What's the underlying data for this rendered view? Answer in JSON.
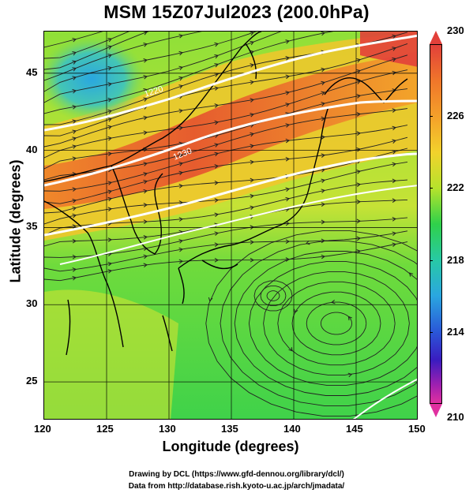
{
  "title": "MSM 15Z07Jul2023 (200.0hPa)",
  "x_axis": {
    "label": "Longitude (degrees)",
    "ticks": [
      "120",
      "125",
      "130",
      "135",
      "140",
      "145",
      "150"
    ],
    "range": [
      120,
      150
    ]
  },
  "y_axis": {
    "label": "Latitude  (degrees)",
    "ticks": [
      "25",
      "30",
      "35",
      "40",
      "45"
    ],
    "range": [
      22.5,
      47.7
    ]
  },
  "colorbar": {
    "max_label": "230",
    "min_label": "210",
    "labels": [
      "230",
      "226",
      "222",
      "218",
      "214",
      "210"
    ],
    "range": [
      210,
      230
    ]
  },
  "contours": [
    {
      "label": "1230",
      "value": 1230
    },
    {
      "label": "1220",
      "value": 1220
    },
    {
      "label": "1230",
      "value": 1230
    }
  ],
  "contour_label_text": {
    "upper": "1220",
    "lower": "1230"
  },
  "footer": {
    "line1": "Drawing by DCL (https://www.gfd-dennou.org/library/dcl/)",
    "line2": "Data from http://database.rish.kyoto-u.ac.jp/arch/jmadata/"
  },
  "colors": {
    "hot": "#e2403a",
    "warm": "#f4a02a",
    "mid": "#b6e32c",
    "green": "#2fd14a",
    "cool": "#2aa7e0",
    "contour": "#ffffff",
    "land_outline": "#000000"
  },
  "map_elements": [
    "temperature-shading",
    "wind-streamlines",
    "geopotential-contours",
    "coastlines",
    "lat-lon-grid"
  ]
}
